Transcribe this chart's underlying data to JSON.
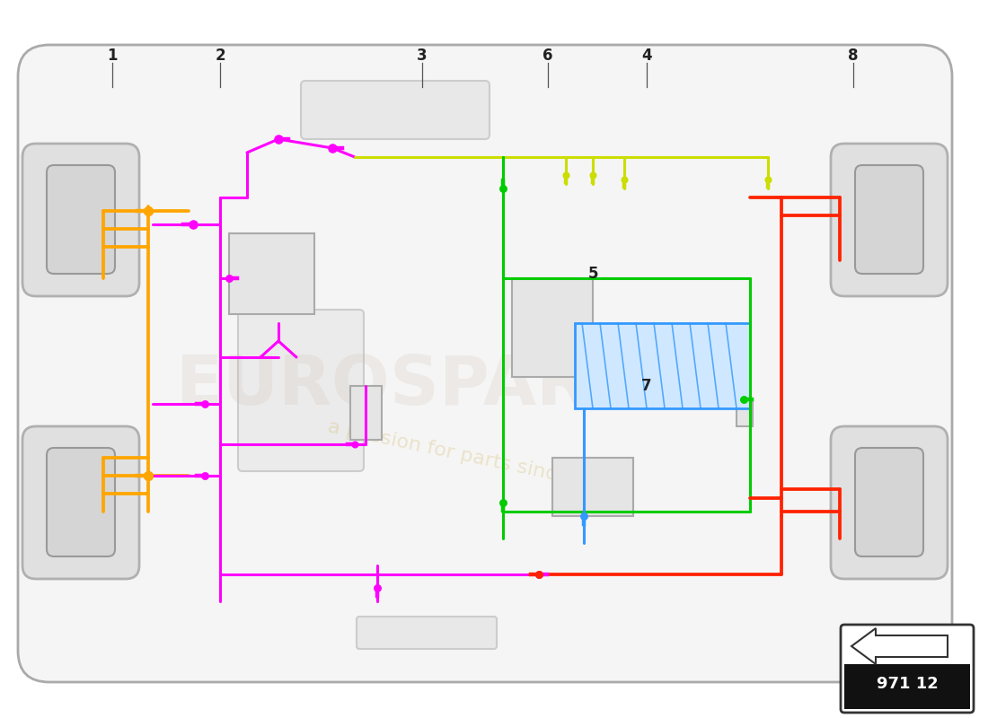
{
  "bg_color": "#ffffff",
  "orange": "#FFA500",
  "magenta": "#FF00FF",
  "ygreen": "#CCDD00",
  "green": "#00CC00",
  "blue": "#3399FF",
  "red": "#FF2200",
  "gray_car": "#cccccc",
  "gray_box": "#bbbbbb",
  "part_number": "971 12",
  "lw": 2.2
}
